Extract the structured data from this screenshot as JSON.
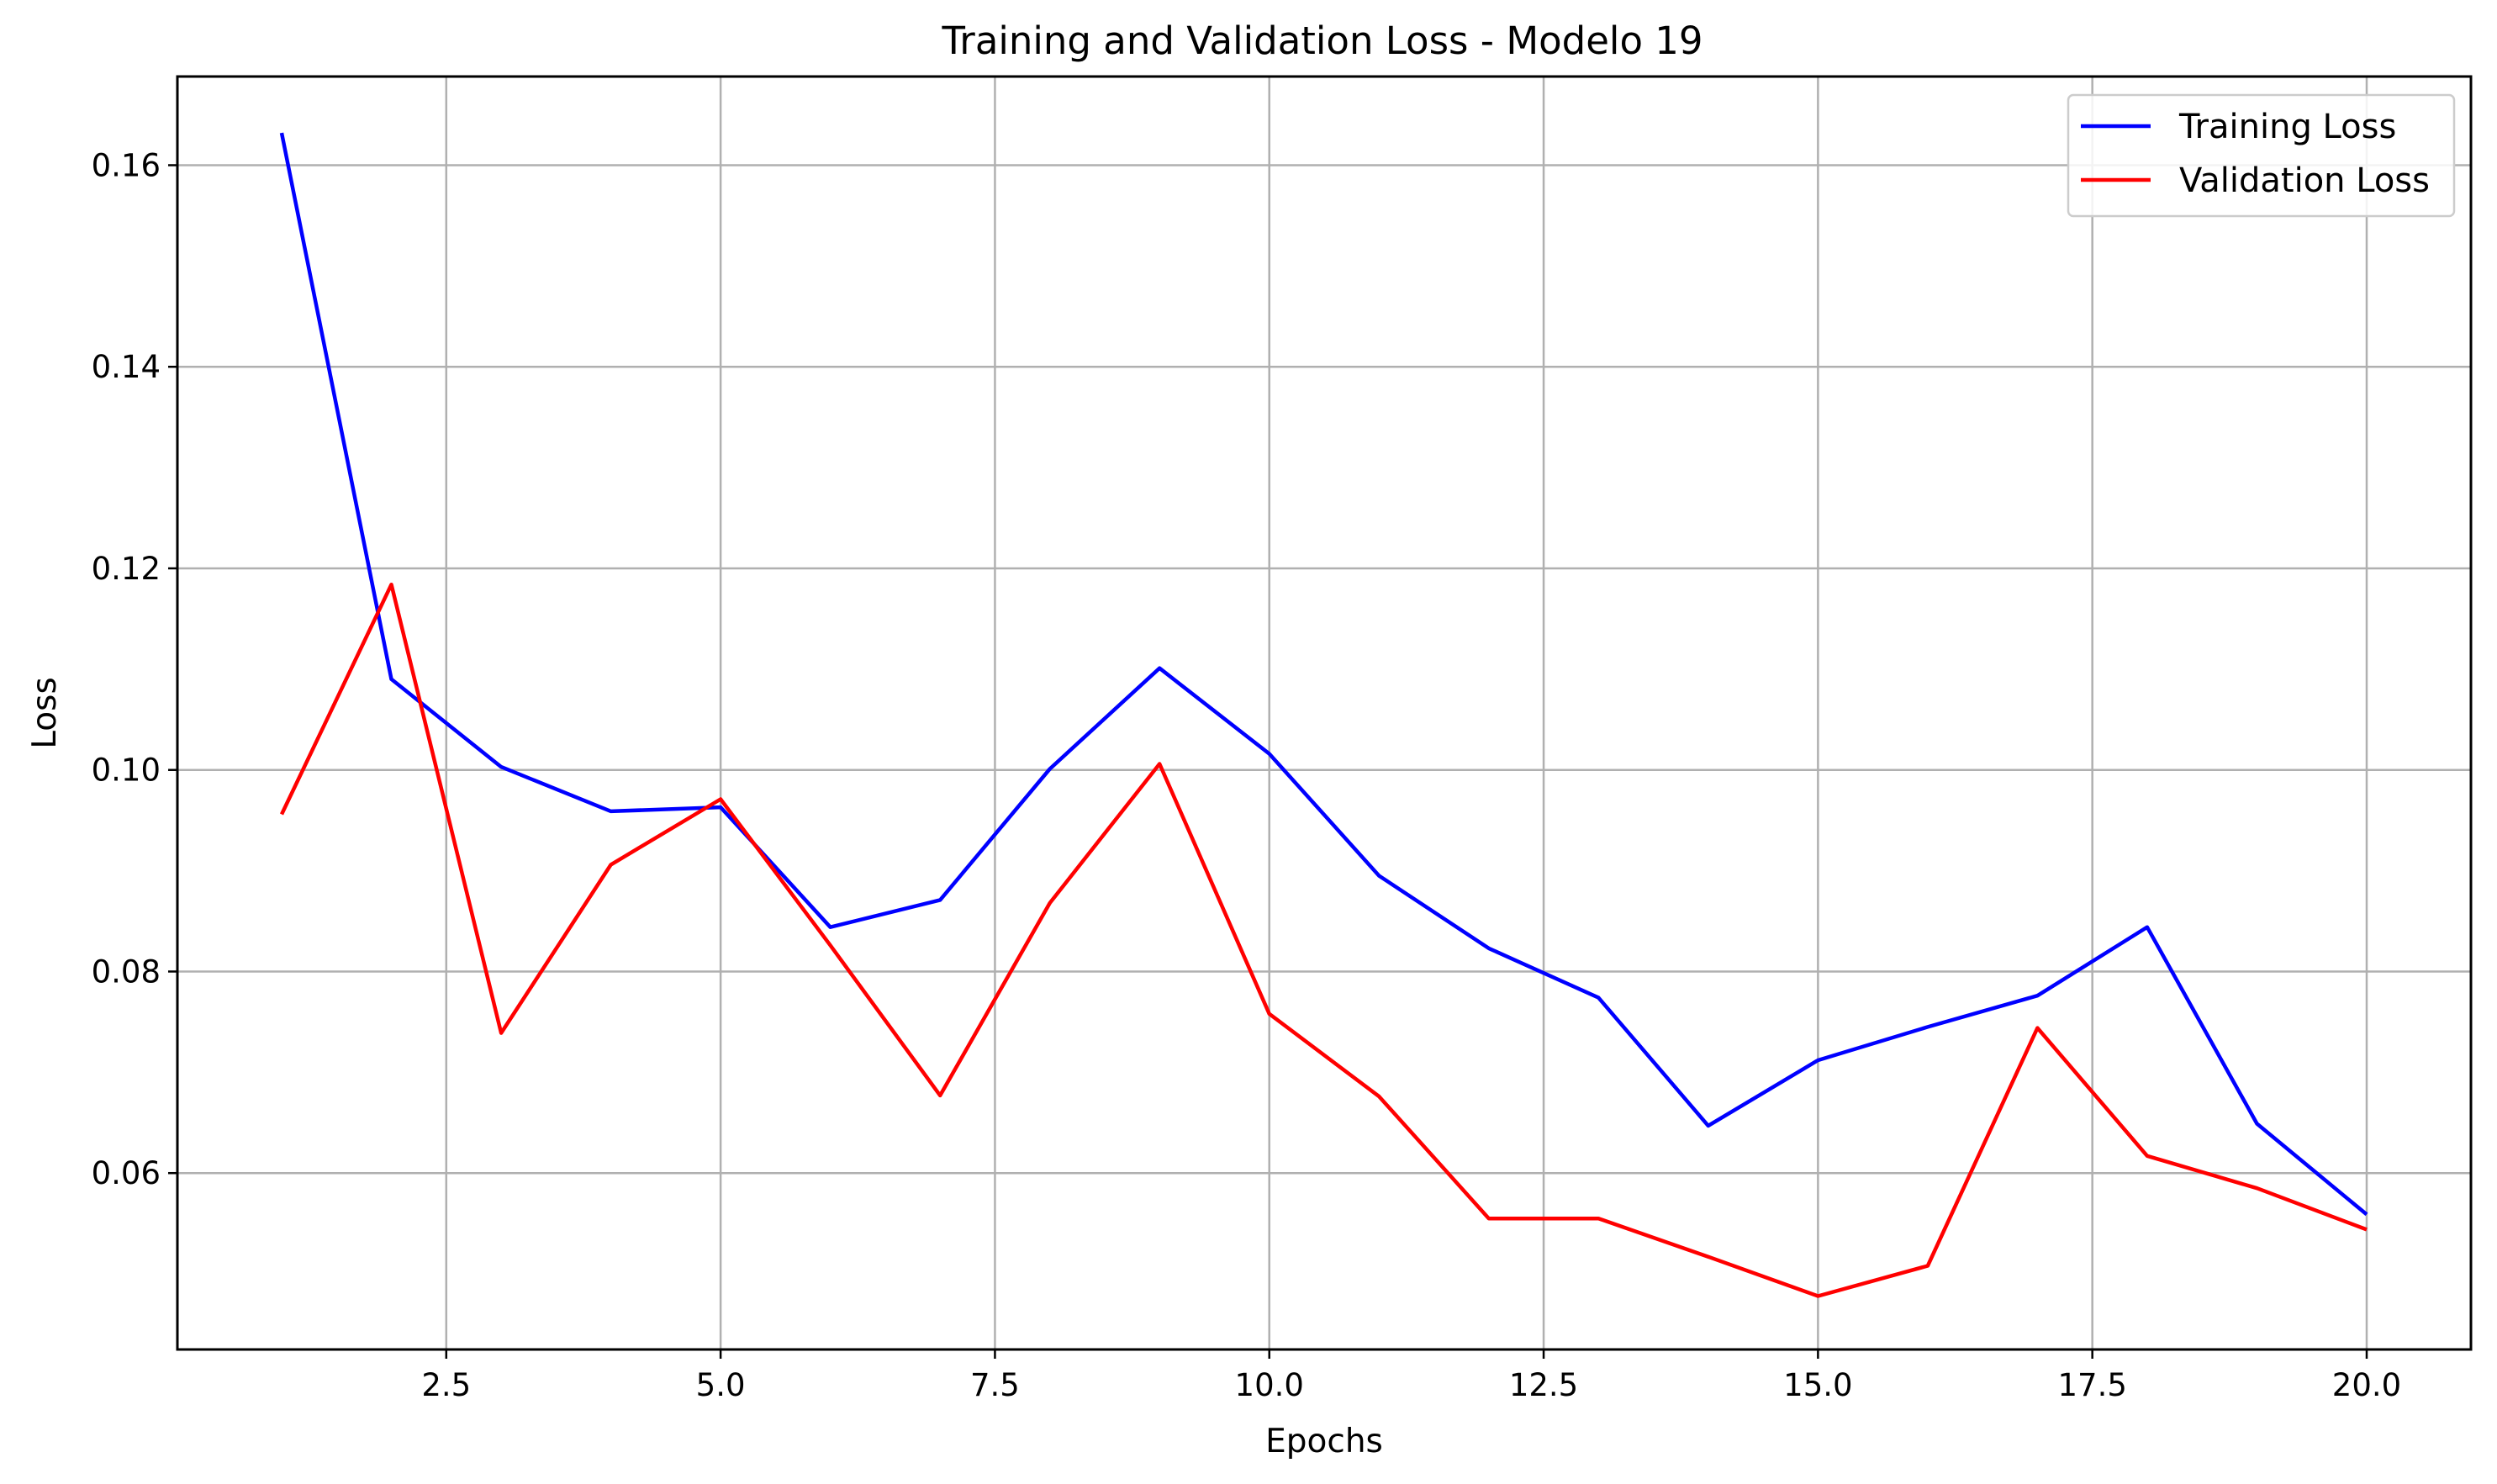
{
  "chart_data": {
    "type": "line",
    "title": "Training and Validation Loss - Modelo 19",
    "xlabel": "Epochs",
    "ylabel": "Loss",
    "xlim": [
      0.05,
      20.95
    ],
    "ylim": [
      0.0425,
      0.1688
    ],
    "grid": true,
    "legend_position": "top-right",
    "x_ticks": [
      2.5,
      5.0,
      7.5,
      10.0,
      12.5,
      15.0,
      17.5,
      20.0
    ],
    "x_tick_labels": [
      "2.5",
      "5.0",
      "7.5",
      "10.0",
      "12.5",
      "15.0",
      "17.5",
      "20.0"
    ],
    "y_ticks": [
      0.06,
      0.08,
      0.1,
      0.12,
      0.14,
      0.16
    ],
    "y_tick_labels": [
      "0.06",
      "0.08",
      "0.10",
      "0.12",
      "0.14",
      "0.16"
    ],
    "x": [
      1,
      2,
      3,
      4,
      5,
      6,
      7,
      8,
      9,
      10,
      11,
      12,
      13,
      14,
      15,
      16,
      17,
      18,
      19,
      20
    ],
    "series": [
      {
        "name": "Training Loss",
        "color": "#0000ff",
        "values": [
          0.1632,
          0.109,
          0.1003,
          0.0959,
          0.0963,
          0.0844,
          0.0871,
          0.1001,
          0.1101,
          0.1016,
          0.0895,
          0.0823,
          0.0774,
          0.0647,
          0.0712,
          0.0745,
          0.0776,
          0.0844,
          0.0649,
          0.0559
        ]
      },
      {
        "name": "Validation Loss",
        "color": "#ff0000",
        "values": [
          0.0956,
          0.1184,
          0.0739,
          0.0906,
          0.0971,
          0.0826,
          0.0677,
          0.0868,
          0.1006,
          0.0758,
          0.0676,
          0.0555,
          0.0555,
          0.0517,
          0.0478,
          0.0508,
          0.0744,
          0.0617,
          0.0585,
          0.0544
        ]
      }
    ]
  }
}
